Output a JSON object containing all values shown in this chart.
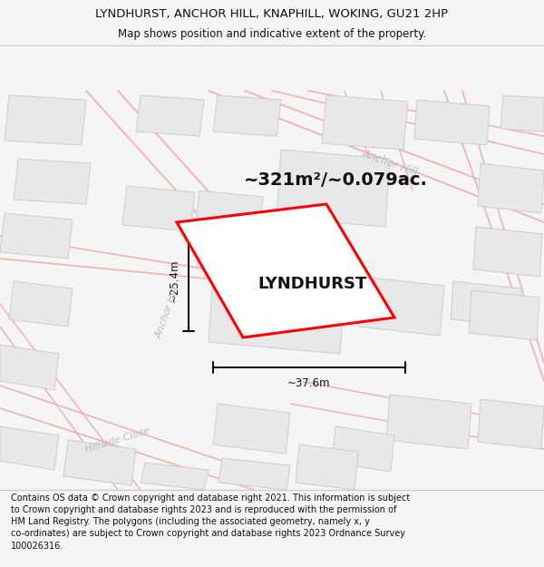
{
  "title_line1": "LYNDHURST, ANCHOR HILL, KNAPHILL, WOKING, GU21 2HP",
  "title_line2": "Map shows position and indicative extent of the property.",
  "area_text": "~321m²/~0.079ac.",
  "property_label": "LYNDHURST",
  "dim_width": "~37.6m",
  "dim_height": "~25.4m",
  "footer_text": "Contains OS data © Crown copyright and database right 2021. This information is subject to Crown copyright and database rights 2023 and is reproduced with the permission of HM Land Registry. The polygons (including the associated geometry, namely x, y co-ordinates) are subject to Crown copyright and database rights 2023 Ordnance Survey 100026316.",
  "bg_color": "#f5f5f5",
  "map_bg": "#ffffff",
  "road_color": "#f0a0a0",
  "building_color": "#e8e8e8",
  "building_edge": "#cccccc",
  "street_outline_color": "#d0a0a0",
  "property_fill": "#ffffff",
  "property_edge": "#ff0000",
  "dim_color": "#111111",
  "street_label_color": "#aaaaaa",
  "title_color": "#111111"
}
